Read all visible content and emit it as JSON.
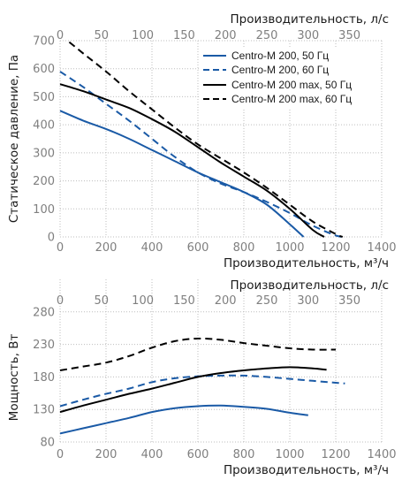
{
  "colors": {
    "blue": "#1a5aa6",
    "black": "#000000",
    "tick": "#7f7f7f"
  },
  "chart_data": [
    {
      "type": "line",
      "title": "",
      "xlabel": "Производительность, м³/ч",
      "x2label": "Производительность, л/с",
      "ylabel": "Статическое давление, Па",
      "xlim": [
        0,
        1400
      ],
      "x2lim": [
        0,
        388.9
      ],
      "ylim": [
        0,
        700
      ],
      "xticks": [
        "0",
        "200",
        "400",
        "600",
        "800",
        "1000",
        "1200",
        "1400"
      ],
      "x2ticks": [
        "0",
        "50",
        "100",
        "150",
        "200",
        "250",
        "300",
        "350"
      ],
      "yticks": [
        "0",
        "100",
        "200",
        "300",
        "400",
        "500",
        "600",
        "700"
      ],
      "grid": true,
      "legend_position": "top-right",
      "series": [
        {
          "name": "Centro-M 200, 50 Гц",
          "color": "#1a5aa6",
          "dash": "solid",
          "x": [
            0,
            100,
            200,
            300,
            400,
            500,
            600,
            700,
            800,
            900,
            1000,
            1060
          ],
          "y": [
            450,
            415,
            385,
            350,
            310,
            270,
            230,
            195,
            160,
            115,
            45,
            0
          ]
        },
        {
          "name": "Centro-M 200, 60 Гц",
          "color": "#1a5aa6",
          "dash": "dashed",
          "x": [
            0,
            100,
            200,
            300,
            400,
            500,
            600,
            700,
            800,
            900,
            1000,
            1100,
            1200,
            1240
          ],
          "y": [
            590,
            535,
            475,
            415,
            350,
            285,
            230,
            190,
            160,
            125,
            85,
            40,
            5,
            0
          ]
        },
        {
          "name": "Centro-M 200 max, 50 Гц",
          "color": "#000000",
          "dash": "solid",
          "x": [
            0,
            100,
            200,
            300,
            400,
            500,
            600,
            700,
            800,
            900,
            1000,
            1100,
            1150
          ],
          "y": [
            545,
            520,
            490,
            460,
            420,
            375,
            320,
            265,
            215,
            165,
            100,
            25,
            0
          ]
        },
        {
          "name": "Centro-M 200 max, 60 Гц",
          "color": "#000000",
          "dash": "dashed",
          "x": [
            40,
            100,
            200,
            300,
            400,
            500,
            600,
            700,
            800,
            900,
            1000,
            1100,
            1200,
            1230
          ],
          "y": [
            695,
            655,
            590,
            520,
            455,
            390,
            330,
            280,
            230,
            175,
            115,
            55,
            10,
            0
          ]
        }
      ]
    },
    {
      "type": "line",
      "title": "",
      "xlabel": "Производительность, м³/ч",
      "x2label": "Производительность, л/с",
      "ylabel": "Мощность, Вт",
      "xlim": [
        0,
        1400
      ],
      "x2lim": [
        0,
        388.9
      ],
      "ylim": [
        80,
        330
      ],
      "xticks": [
        "0",
        "200",
        "400",
        "600",
        "800",
        "1000",
        "1200",
        "1400"
      ],
      "x2ticks": [
        "0",
        "50",
        "100",
        "150",
        "200",
        "250",
        "300",
        "350"
      ],
      "yticks": [
        "80",
        "130",
        "180",
        "230",
        "280"
      ],
      "grid": true,
      "series": [
        {
          "name": "Centro-M 200, 50 Гц",
          "color": "#1a5aa6",
          "dash": "solid",
          "x": [
            0,
            100,
            200,
            300,
            400,
            500,
            600,
            700,
            800,
            900,
            1000,
            1080
          ],
          "y": [
            93,
            101,
            109,
            117,
            126,
            132,
            135,
            136,
            134,
            131,
            125,
            121
          ]
        },
        {
          "name": "Centro-M 200, 60 Гц",
          "color": "#1a5aa6",
          "dash": "dashed",
          "x": [
            0,
            100,
            200,
            300,
            400,
            500,
            600,
            700,
            800,
            900,
            1000,
            1100,
            1200,
            1240
          ],
          "y": [
            135,
            145,
            154,
            162,
            172,
            178,
            181,
            182,
            182,
            180,
            177,
            174,
            171,
            170
          ]
        },
        {
          "name": "Centro-M 200 max, 50 Гц",
          "color": "#000000",
          "dash": "solid",
          "x": [
            0,
            100,
            200,
            300,
            400,
            500,
            600,
            700,
            800,
            900,
            1000,
            1100,
            1160
          ],
          "y": [
            126,
            136,
            145,
            154,
            162,
            171,
            180,
            186,
            190,
            193,
            195,
            193,
            191
          ]
        },
        {
          "name": "Centro-M 200 max, 60 Гц",
          "color": "#000000",
          "dash": "dashed",
          "x": [
            0,
            100,
            200,
            300,
            400,
            500,
            600,
            700,
            800,
            900,
            1000,
            1100,
            1200
          ],
          "y": [
            190,
            196,
            202,
            212,
            225,
            235,
            239,
            237,
            232,
            228,
            224,
            222,
            222
          ]
        }
      ]
    }
  ]
}
